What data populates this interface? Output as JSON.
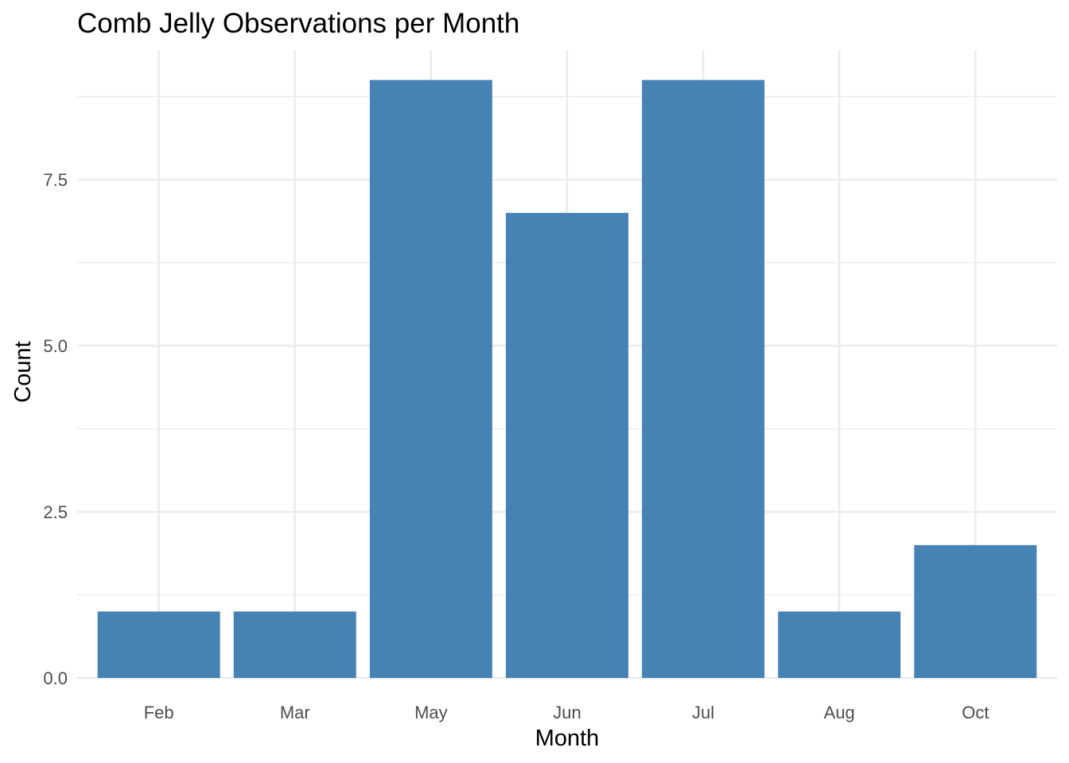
{
  "chart_data": {
    "type": "bar",
    "title": "Comb Jelly Observations per Month",
    "xlabel": "Month",
    "ylabel": "Count",
    "categories": [
      "Feb",
      "Mar",
      "May",
      "Jun",
      "Jul",
      "Aug",
      "Oct"
    ],
    "values": [
      1,
      1,
      9,
      7,
      9,
      1,
      2
    ],
    "ylim": [
      0,
      9.45
    ],
    "y_ticks": [
      0,
      2.5,
      5,
      7.5
    ],
    "y_tick_labels": [
      "0.0",
      "2.5",
      "5.0",
      "7.5"
    ],
    "y_minor_ticks": [
      1.25,
      3.75,
      6.25,
      8.75
    ],
    "grid": true,
    "legend": "none",
    "bar_color": "#4682b4",
    "grid_color": "#ebebeb"
  }
}
